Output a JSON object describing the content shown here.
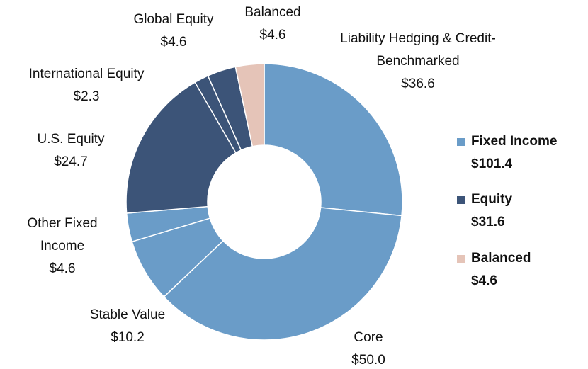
{
  "chart_data": {
    "type": "donut",
    "categories": [
      "Liability Hedging & Credit-Benchmarked",
      "Core",
      "Stable Value",
      "Other Fixed Income",
      "U.S. Equity",
      "International Equity",
      "Global Equity",
      "Balanced"
    ],
    "values": [
      36.6,
      50.0,
      10.2,
      4.6,
      24.7,
      2.3,
      4.6,
      4.6
    ],
    "value_labels": [
      "$36.6",
      "$50.0",
      "$10.2",
      "$4.6",
      "$24.7",
      "$2.3",
      "$4.6",
      "$4.6"
    ],
    "colors": [
      "#6a9cc8",
      "#6a9cc8",
      "#6a9cc8",
      "#6a9cc8",
      "#3c5478",
      "#3c5478",
      "#3c5478",
      "#e5c4b8"
    ],
    "legend": [
      {
        "name": "Fixed Income",
        "color": "#6a9cc8",
        "value": 101.4,
        "value_label": "$101.4"
      },
      {
        "name": "Equity",
        "color": "#3c5478",
        "value": 31.6,
        "value_label": "$31.6"
      },
      {
        "name": "Balanced",
        "color": "#e5c4b8",
        "value": 4.6,
        "value_label": "$4.6"
      }
    ]
  }
}
